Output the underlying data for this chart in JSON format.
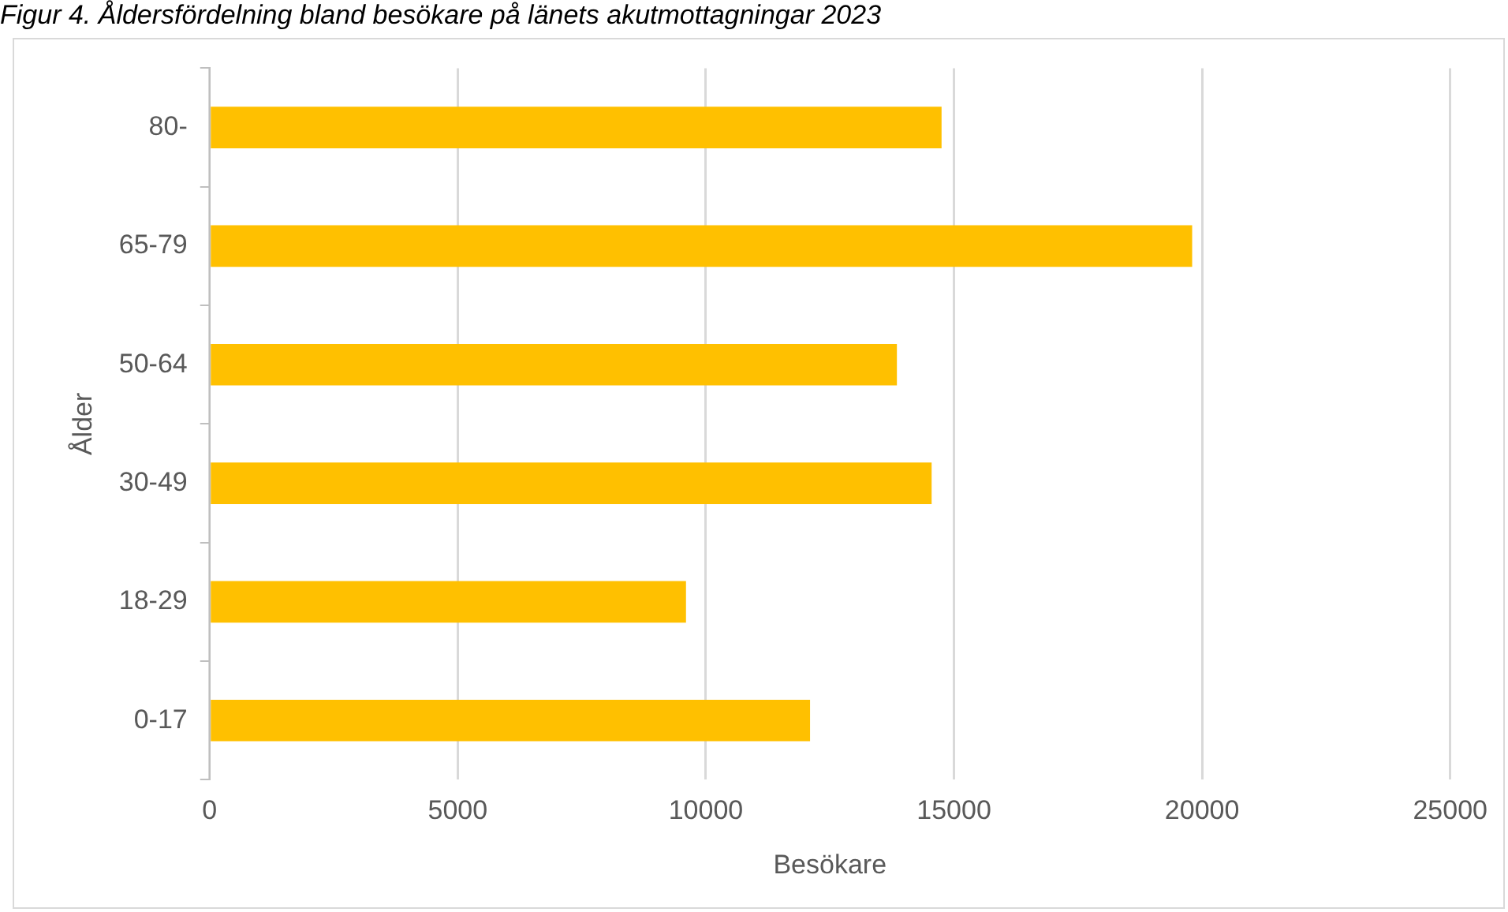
{
  "chart_data": {
    "type": "bar",
    "orientation": "horizontal",
    "title": "Figur 4. Åldersfördelning bland besökare på länets akutmottagningar 2023",
    "xlabel": "Besökare",
    "ylabel": "Ålder",
    "categories": [
      "80-",
      "65-79",
      "50-64",
      "30-49",
      "18-29",
      "0-17"
    ],
    "values": [
      14750,
      19800,
      13850,
      14550,
      9600,
      12100
    ],
    "color": "#ffc000",
    "xlim": [
      0,
      25000
    ],
    "xticks": [
      0,
      5000,
      10000,
      15000,
      20000,
      25000
    ],
    "grid": "x",
    "legend": false
  }
}
